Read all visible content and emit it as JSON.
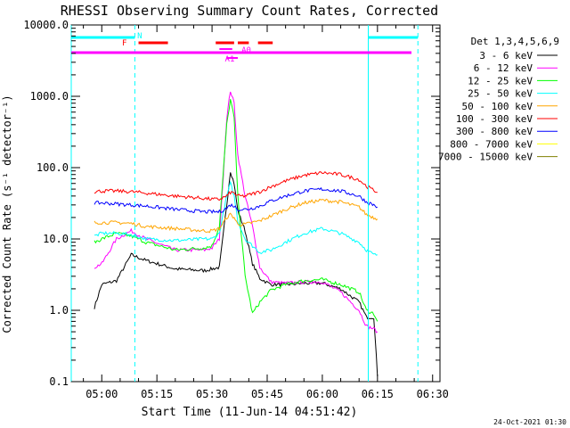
{
  "chart_data": {
    "type": "line",
    "title": "RHESSI Observing Summary Count Rates, Corrected",
    "xlabel": "Start Time (11-Jun-14 04:51:42)",
    "ylabel": "Corrected Count Rate (s⁻¹ detector⁻¹)",
    "y_scale": "log",
    "ylim": [
      0.1,
      10000
    ],
    "xlim": [
      "04:51:42",
      "06:32:00"
    ],
    "x_ticks": [
      "05:00",
      "05:15",
      "05:30",
      "05:45",
      "06:00",
      "06:15",
      "06:30"
    ],
    "y_ticks": [
      "0.1",
      "1.0",
      "10.0",
      "100.0",
      "1000.0",
      "10000.0"
    ],
    "legend_title": "Det 1,3,4,5,6,9",
    "legend_position": "right",
    "footer": "24-Oct-2021 01:30",
    "series": [
      {
        "name": "3 - 6 keV",
        "color": "#000000",
        "x": [
          "04:58",
          "05:00",
          "05:04",
          "05:08",
          "05:12",
          "05:20",
          "05:28",
          "05:30",
          "05:32",
          "05:34",
          "05:35",
          "05:36",
          "05:37",
          "05:39",
          "05:41",
          "05:43",
          "05:46",
          "05:50",
          "05:55",
          "06:00",
          "06:05",
          "06:10",
          "06:12",
          "06:14",
          "06:15"
        ],
        "y": [
          1.1,
          2.3,
          2.6,
          6.0,
          5.0,
          3.8,
          3.6,
          3.8,
          4.0,
          30,
          90,
          60,
          25,
          13,
          4.5,
          2.8,
          2.3,
          2.3,
          2.4,
          2.4,
          2.0,
          1.3,
          0.8,
          0.8,
          0.12
        ]
      },
      {
        "name": "6 - 12 keV",
        "color": "#ff00ff",
        "x": [
          "04:58",
          "05:00",
          "05:04",
          "05:08",
          "05:12",
          "05:20",
          "05:28",
          "05:30",
          "05:32",
          "05:34",
          "05:35",
          "05:36",
          "05:37",
          "05:39",
          "05:41",
          "05:43",
          "05:46",
          "05:50",
          "05:55",
          "06:00",
          "06:05",
          "06:10",
          "06:12",
          "06:14",
          "06:15"
        ],
        "y": [
          4,
          4.5,
          10,
          13,
          10,
          7,
          7,
          7.5,
          10,
          500,
          1200,
          800,
          150,
          40,
          15,
          4,
          2.5,
          2.4,
          2.5,
          2.5,
          1.8,
          1.0,
          0.6,
          0.55,
          0.5
        ]
      },
      {
        "name": "12 - 25 keV",
        "color": "#00ff00",
        "x": [
          "04:58",
          "05:00",
          "05:04",
          "05:08",
          "05:12",
          "05:20",
          "05:28",
          "05:30",
          "05:32",
          "05:34",
          "05:35",
          "05:36",
          "05:37",
          "05:39",
          "05:41",
          "05:43",
          "05:46",
          "05:50",
          "05:55",
          "06:00",
          "06:05",
          "06:10",
          "06:12",
          "06:14",
          "06:15"
        ],
        "y": [
          9,
          10,
          12,
          11,
          9,
          7,
          7.5,
          8,
          15,
          400,
          900,
          500,
          40,
          3,
          0.9,
          1.3,
          1.9,
          2.3,
          2.6,
          2.7,
          2.3,
          1.8,
          1.0,
          0.9,
          0.7
        ]
      },
      {
        "name": "25 - 50 keV",
        "color": "#00ffff",
        "x": [
          "04:58",
          "05:00",
          "05:04",
          "05:08",
          "05:12",
          "05:20",
          "05:28",
          "05:30",
          "05:32",
          "05:34",
          "05:35",
          "05:36",
          "05:37",
          "05:39",
          "05:41",
          "05:43",
          "05:46",
          "05:50",
          "05:55",
          "06:00",
          "06:05",
          "06:10",
          "06:12",
          "06:14",
          "06:15"
        ],
        "y": [
          11,
          12,
          12,
          11.5,
          10,
          9.5,
          10,
          10,
          12,
          40,
          60,
          40,
          18,
          10,
          8,
          6.5,
          7,
          9,
          12,
          14,
          12,
          9,
          7,
          6,
          6
        ]
      },
      {
        "name": "50 - 100 keV",
        "color": "#ffa500",
        "x": [
          "04:58",
          "05:00",
          "05:04",
          "05:08",
          "05:12",
          "05:20",
          "05:28",
          "05:30",
          "05:32",
          "05:34",
          "05:35",
          "05:36",
          "05:37",
          "05:39",
          "05:41",
          "05:43",
          "05:46",
          "05:50",
          "05:55",
          "06:00",
          "06:05",
          "06:10",
          "06:12",
          "06:14",
          "06:15"
        ],
        "y": [
          17,
          17,
          17,
          16.5,
          15,
          14,
          13,
          13,
          14,
          20,
          22,
          20,
          16,
          16,
          17,
          18,
          21,
          26,
          32,
          35,
          33,
          28,
          22,
          20,
          19
        ]
      },
      {
        "name": "100 - 300 keV",
        "color": "#ff0000",
        "x": [
          "04:58",
          "05:00",
          "05:04",
          "05:08",
          "05:12",
          "05:20",
          "05:28",
          "05:30",
          "05:32",
          "05:34",
          "05:35",
          "05:36",
          "05:37",
          "05:39",
          "05:41",
          "05:43",
          "05:46",
          "05:50",
          "05:55",
          "06:00",
          "06:05",
          "06:10",
          "06:12",
          "06:14",
          "06:15"
        ],
        "y": [
          46,
          47,
          47,
          46,
          44,
          40,
          37,
          36,
          36,
          40,
          45,
          44,
          40,
          40,
          43,
          46,
          54,
          65,
          78,
          85,
          80,
          68,
          55,
          48,
          45
        ]
      },
      {
        "name": "300 - 800 keV",
        "color": "#0000ff",
        "x": [
          "04:58",
          "05:00",
          "05:04",
          "05:08",
          "05:12",
          "05:20",
          "05:28",
          "05:30",
          "05:32",
          "05:34",
          "05:35",
          "05:36",
          "05:37",
          "05:39",
          "05:41",
          "05:43",
          "05:46",
          "05:50",
          "05:55",
          "06:00",
          "06:05",
          "06:10",
          "06:12",
          "06:14",
          "06:15"
        ],
        "y": [
          32,
          32,
          31,
          30,
          29,
          26,
          24,
          24,
          24,
          27,
          30,
          29,
          26,
          26,
          27,
          29,
          34,
          40,
          47,
          50,
          47,
          40,
          33,
          30,
          28
        ]
      },
      {
        "name": "800 - 7000 keV",
        "color": "#ffff00",
        "x": [],
        "y": []
      },
      {
        "name": "7000 - 15000 keV",
        "color": "#808000",
        "x": [],
        "y": []
      }
    ],
    "annotations": {
      "eclipse_bars_color": "#00ffff",
      "saa_bars_color": "#ff00ff",
      "flare_bars_color": "#ff0000",
      "labels": [
        "N",
        "F",
        "A0",
        "A1"
      ]
    }
  }
}
